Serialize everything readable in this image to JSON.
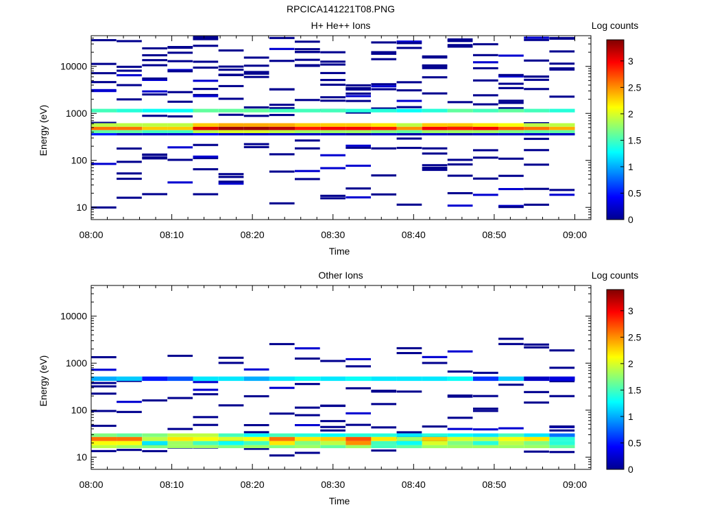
{
  "figure_title": "RPCICA141221T08.PNG",
  "colormap": [
    "#00008f",
    "#0000ff",
    "#0080ff",
    "#00ffff",
    "#80ff80",
    "#ffff00",
    "#ff8000",
    "#ff0000",
    "#800000"
  ],
  "chart_data": [
    {
      "type": "heatmap",
      "title": "H+ He++ Ions",
      "xlabel": "Time",
      "ylabel": "Energy (eV)",
      "colorbar_label": "Log counts",
      "colorbar_ticks": [
        "0",
        "0.5",
        "1",
        "1.5",
        "2",
        "2.5",
        "3"
      ],
      "colorbar_range": [
        0,
        3.4
      ],
      "x_ticks": [
        "08:00",
        "08:10",
        "08:20",
        "08:30",
        "08:40",
        "08:50",
        "09:00"
      ],
      "x_range_minutes": [
        0,
        62
      ],
      "y_ticks": [
        "10",
        "100",
        "1000",
        "10000"
      ],
      "y_scale": "log",
      "y_range": [
        5.5,
        45000
      ],
      "time_bins": 19,
      "bands": [
        {
          "energy_low": 440,
          "energy_high": 520,
          "values": [
            2.6,
            2.6,
            2.3,
            2.3,
            3.1,
            3.3,
            3.3,
            3.2,
            2.9,
            3.0,
            3.0,
            2.9,
            2.5,
            3.0,
            2.9,
            3.0,
            2.7,
            2.6,
            2.4
          ]
        },
        {
          "energy_low": 520,
          "energy_high": 620,
          "values": [
            1.9,
            1.9,
            1.9,
            1.9,
            2.3,
            2.4,
            2.4,
            2.4,
            2.3,
            2.3,
            2.3,
            2.2,
            1.9,
            2.3,
            2.3,
            2.2,
            2.1,
            1.9,
            1.9
          ]
        },
        {
          "energy_low": 380,
          "energy_high": 440,
          "values": [
            1.6,
            1.6,
            1.5,
            1.5,
            1.9,
            2.0,
            2.0,
            1.9,
            1.8,
            1.8,
            1.8,
            1.7,
            1.6,
            1.8,
            1.8,
            1.8,
            1.7,
            1.6,
            1.6
          ]
        },
        {
          "energy_low": 1050,
          "energy_high": 1250,
          "values": [
            1.5,
            1.4,
            1.3,
            1.3,
            1.6,
            1.6,
            1.6,
            1.5,
            1.5,
            1.5,
            1.4,
            1.4,
            1.3,
            1.4,
            1.6,
            1.5,
            1.6,
            1.5,
            1.4
          ]
        },
        {
          "energy_low": 340,
          "energy_high": 380,
          "values": [
            0.5,
            0.2,
            0.2,
            0.2,
            0.4,
            0.2,
            0.2,
            0.2,
            0.2,
            0.2,
            0.1,
            0.2,
            0.1,
            0.2,
            0.1,
            0.2,
            0.2,
            0.2,
            0.2
          ]
        }
      ],
      "sparse_counts": "single-count detections (~0.0-0.2) scattered across energies 10 - 40000 eV"
    },
    {
      "type": "heatmap",
      "title": "Other Ions",
      "xlabel": "Time",
      "ylabel": "Energy (eV)",
      "colorbar_label": "Log counts",
      "colorbar_ticks": [
        "0",
        "0.5",
        "1",
        "1.5",
        "2",
        "2.5",
        "3"
      ],
      "colorbar_range": [
        0,
        3.4
      ],
      "x_ticks": [
        "08:00",
        "08:10",
        "08:20",
        "08:30",
        "08:40",
        "08:50",
        "09:00"
      ],
      "x_range_minutes": [
        0,
        62
      ],
      "y_ticks": [
        "10",
        "100",
        "1000",
        "10000"
      ],
      "y_scale": "log",
      "y_range": [
        5.5,
        45000
      ],
      "time_bins": 19,
      "bands": [
        {
          "energy_low": 22,
          "energy_high": 27,
          "values": [
            2.6,
            2.6,
            1.9,
            2.2,
            2.1,
            2.0,
            2.1,
            2.6,
            2.2,
            2.3,
            2.7,
            2.2,
            1.8,
            2.3,
            2.0,
            1.9,
            2.1,
            2.2,
            1.4
          ]
        },
        {
          "energy_low": 18,
          "energy_high": 22,
          "values": [
            2.1,
            2.1,
            1.2,
            1.8,
            1.5,
            1.3,
            1.5,
            2.2,
            1.7,
            1.9,
            2.5,
            1.5,
            1.3,
            2.0,
            1.7,
            1.4,
            1.9,
            1.7,
            1.4
          ]
        },
        {
          "energy_low": 15.5,
          "energy_high": 18,
          "values": [
            1.9,
            1.8,
            1.7,
            1.8,
            1.8,
            1.7,
            1.8,
            1.7,
            1.8,
            1.6,
            1.8,
            1.5,
            1.6,
            1.8,
            1.8,
            1.8,
            1.8,
            1.8,
            1.6
          ]
        },
        {
          "energy_low": 27,
          "energy_high": 32,
          "values": [
            1.7,
            1.6,
            1.7,
            1.9,
            1.9,
            1.5,
            1.3,
            1.5,
            1.4,
            1.3,
            1.4,
            1.4,
            1.2,
            1.4,
            1.3,
            1.2,
            1.5,
            1.2,
            0.8
          ]
        },
        {
          "energy_low": 420,
          "energy_high": 520,
          "values": [
            1.0,
            1.1,
            0.5,
            0.7,
            1.2,
            1.2,
            1.0,
            1.2,
            1.3,
            1.2,
            1.3,
            1.2,
            1.2,
            1.2,
            1.3,
            0.6,
            1.1,
            0.2,
            0.3
          ]
        }
      ],
      "sparse_counts": "single-count detections (~0.0-0.3) scattered across energies 10 - 3000 eV"
    }
  ]
}
